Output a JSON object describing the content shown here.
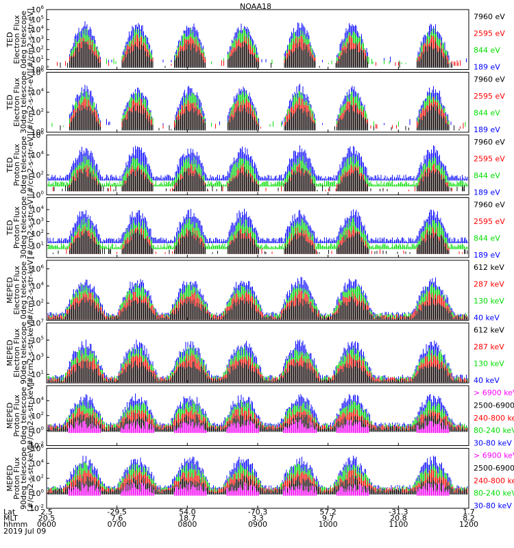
{
  "chart_data": {
    "type": "line",
    "title": "NOAA18",
    "date": "2019 Jul 09",
    "colors": {
      "black": "#000000",
      "red": "#ff0000",
      "green": "#00dd00",
      "blue": "#0000ff",
      "magenta": "#ff00ff"
    },
    "x_axis": {
      "row_labels": [
        "Lat",
        "MLT",
        "hhmm"
      ],
      "ticks": [
        {
          "time": "0600",
          "lat": "2.5",
          "mlt": "20.5"
        },
        {
          "time": "0700",
          "lat": "-29.5",
          "mlt": "7.6"
        },
        {
          "time": "0800",
          "lat": "54.0",
          "mlt": "18.7"
        },
        {
          "time": "0900",
          "lat": "-70.3",
          "mlt": "3.3"
        },
        {
          "time": "1000",
          "lat": "57.2",
          "mlt": "9.7"
        },
        {
          "time": "1100",
          "lat": "-31.3",
          "mlt": "20.8"
        },
        {
          "time": "1200",
          "lat": "1.7",
          "mlt": "8.2"
        }
      ]
    },
    "panels": [
      {
        "ylabel": [
          "TED",
          "Electron Flux",
          "0deg telescope",
          "[#/cm2-s-str-eV]"
        ],
        "ylog": [
          0,
          6
        ],
        "yticks": [
          {
            "b": "10",
            "e": "0"
          },
          {
            "b": "10",
            "e": "1"
          },
          {
            "b": "10",
            "e": "2"
          },
          {
            "b": "10",
            "e": "3"
          },
          {
            "b": "10",
            "e": "4"
          },
          {
            "b": "10",
            "e": "5"
          },
          {
            "b": "10",
            "e": "6"
          }
        ],
        "legend": [
          {
            "text": "7960 eV",
            "color": "black"
          },
          {
            "text": "2595 eV",
            "color": "red"
          },
          {
            "text": "844 eV",
            "color": "green"
          },
          {
            "text": "189 eV",
            "color": "blue"
          }
        ]
      },
      {
        "ylabel": [
          "TED",
          "Electron Flux",
          "30deg telescope",
          "[#/cm2-s-str-eV]"
        ],
        "ylog": [
          0,
          6
        ],
        "yticks": [
          {
            "b": "10",
            "e": "0"
          },
          {
            "b": "10",
            "e": "2"
          },
          {
            "b": "10",
            "e": "4"
          },
          {
            "b": "10",
            "e": "6"
          }
        ],
        "legend": [
          {
            "text": "7960 eV",
            "color": "black"
          },
          {
            "text": "2595 eV",
            "color": "red"
          },
          {
            "text": "844 eV",
            "color": "green"
          },
          {
            "text": "189 eV",
            "color": "blue"
          }
        ]
      },
      {
        "ylabel": [
          "TED",
          "Proton Flux",
          "0deg telescope",
          "[#/cm2-s-str-eV]"
        ],
        "ylog": [
          0,
          6
        ],
        "yticks": [
          {
            "b": "10",
            "e": "0"
          },
          {
            "b": "10",
            "e": "2"
          },
          {
            "b": "10",
            "e": "4"
          },
          {
            "b": "10",
            "e": "6"
          }
        ],
        "legend": [
          {
            "text": "7960 eV",
            "color": "black"
          },
          {
            "text": "2595 eV",
            "color": "red"
          },
          {
            "text": "844 eV",
            "color": "green"
          },
          {
            "text": "189 eV",
            "color": "blue"
          }
        ]
      },
      {
        "ylabel": [
          "TED",
          "Proton Flux",
          "30deg telescope",
          "[#/cm2-s-str-eV]"
        ],
        "ylog": [
          0,
          5
        ],
        "yticks": [
          {
            "b": "10",
            "e": "1"
          },
          {
            "b": "10",
            "e": "2"
          },
          {
            "b": "10",
            "e": "3"
          },
          {
            "b": "10",
            "e": "4"
          }
        ],
        "legend": [
          {
            "text": "7960 eV",
            "color": "black"
          },
          {
            "text": "2595 eV",
            "color": "red"
          },
          {
            "text": "844 eV",
            "color": "green"
          },
          {
            "text": "189 eV",
            "color": "blue"
          }
        ]
      },
      {
        "ylabel": [
          "MEPED",
          "Electron Flux",
          "0deg telescope",
          "[#/cm2-s-str-keV]"
        ],
        "ylog": [
          0,
          7
        ],
        "yticks": [
          {
            "b": "10",
            "e": "2"
          },
          {
            "b": "10",
            "e": "4"
          },
          {
            "b": "10",
            "e": "6"
          }
        ],
        "legend": [
          {
            "text": "612 keV",
            "color": "black"
          },
          {
            "text": "287 keV",
            "color": "red"
          },
          {
            "text": "130 keV",
            "color": "green"
          },
          {
            "text": "40 keV",
            "color": "blue"
          }
        ]
      },
      {
        "ylabel": [
          "MEPED",
          "Electron Flux",
          "90deg telescope",
          "[#/cm2-s-str-keV]"
        ],
        "ylog": [
          0,
          7
        ],
        "yticks": [
          {
            "b": "10",
            "e": "1"
          },
          {
            "b": "10",
            "e": "3"
          },
          {
            "b": "10",
            "e": "5"
          },
          {
            "b": "10",
            "e": "7"
          }
        ],
        "legend": [
          {
            "text": "612 keV",
            "color": "black"
          },
          {
            "text": "287 keV",
            "color": "red"
          },
          {
            "text": "130 keV",
            "color": "green"
          },
          {
            "text": "40 keV",
            "color": "blue"
          }
        ]
      },
      {
        "ylabel": [
          "MEPED",
          "Proton Flux",
          "0deg telescope",
          "[#/cm2-s-str-keV]"
        ],
        "ylog": [
          -2,
          6
        ],
        "yticks": [
          {
            "b": "10",
            "e": "-2"
          },
          {
            "b": "10",
            "e": "0"
          },
          {
            "b": "10",
            "e": "2"
          },
          {
            "b": "10",
            "e": "4"
          }
        ],
        "legend": [
          {
            "text": "> 6900 keV",
            "color": "magenta"
          },
          {
            "text": "2500-6900",
            "color": "black"
          },
          {
            "text": "240-800 ke",
            "color": "red"
          },
          {
            "text": "80-240 keV",
            "color": "green"
          },
          {
            "text": "30-80 keV",
            "color": "blue"
          }
        ]
      },
      {
        "ylabel": [
          "MEPED",
          "Proton Flux",
          "90deg telescope",
          "[#/cm2-s-str-keV]"
        ],
        "ylog": [
          -2,
          6
        ],
        "yticks": [
          {
            "b": "10",
            "e": "-2"
          },
          {
            "b": "10",
            "e": "0"
          },
          {
            "b": "10",
            "e": "2"
          },
          {
            "b": "10",
            "e": "4"
          },
          {
            "b": "10",
            "e": "6"
          }
        ],
        "legend": [
          {
            "text": "> 6900 keV",
            "color": "magenta"
          },
          {
            "text": "2500-6900",
            "color": "black"
          },
          {
            "text": "240-800 ke",
            "color": "red"
          },
          {
            "text": "80-240 keV",
            "color": "green"
          },
          {
            "text": "30-80 keV",
            "color": "blue"
          }
        ]
      }
    ],
    "series_note_count": 0
  }
}
